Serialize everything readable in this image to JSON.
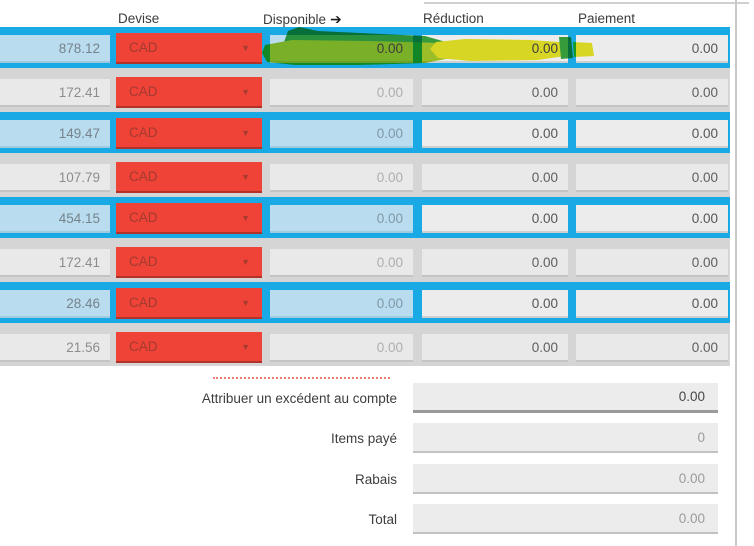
{
  "header": {
    "devise_label": "Devise",
    "disponible_label": "Disponible",
    "disponible_arrow_icon": "➔",
    "reduction_label": "Réduction",
    "paiement_label": "Paiement"
  },
  "rows": [
    {
      "amount": "878.12",
      "currency": "CAD",
      "disponible": "0.00",
      "reduction": "0.00",
      "paiement": "0.00",
      "highlighted": true,
      "annotations": [
        "green-highlighter",
        "yellow-highlighter"
      ]
    },
    {
      "amount": "172.41",
      "currency": "CAD",
      "disponible": "0.00",
      "reduction": "0.00",
      "paiement": "0.00",
      "highlighted": false
    },
    {
      "amount": "149.47",
      "currency": "CAD",
      "disponible": "0.00",
      "reduction": "0.00",
      "paiement": "0.00",
      "highlighted": true
    },
    {
      "amount": "107.79",
      "currency": "CAD",
      "disponible": "0.00",
      "reduction": "0.00",
      "paiement": "0.00",
      "highlighted": false
    },
    {
      "amount": "454.15",
      "currency": "CAD",
      "disponible": "0.00",
      "reduction": "0.00",
      "paiement": "0.00",
      "highlighted": true
    },
    {
      "amount": "172.41",
      "currency": "CAD",
      "disponible": "0.00",
      "reduction": "0.00",
      "paiement": "0.00",
      "highlighted": false
    },
    {
      "amount": "28.46",
      "currency": "CAD",
      "disponible": "0.00",
      "reduction": "0.00",
      "paiement": "0.00",
      "highlighted": true
    },
    {
      "amount": "21.56",
      "currency": "CAD",
      "disponible": "0.00",
      "reduction": "0.00",
      "paiement": "0.00",
      "highlighted": false
    }
  ],
  "summary": [
    {
      "label": "Attribuer un excédent au compte",
      "value": "0.00",
      "emphasized": true
    },
    {
      "label": "Items payé",
      "value": "0",
      "emphasized": false
    },
    {
      "label": "Rabais",
      "value": "0.00",
      "emphasized": false
    },
    {
      "label": "Total",
      "value": "0.00",
      "emphasized": false
    }
  ],
  "icons": {
    "dropdown_arrow": "▼"
  },
  "colors": {
    "row_highlight": "#19a9e5",
    "highlight_field_bg": "#b9dcee",
    "currency_red": "#ef4337",
    "green_highlighter": "#2fa335",
    "yellowgreen_highlighter": "#a2c91f",
    "yellow_highlighter": "#e9e71a"
  }
}
